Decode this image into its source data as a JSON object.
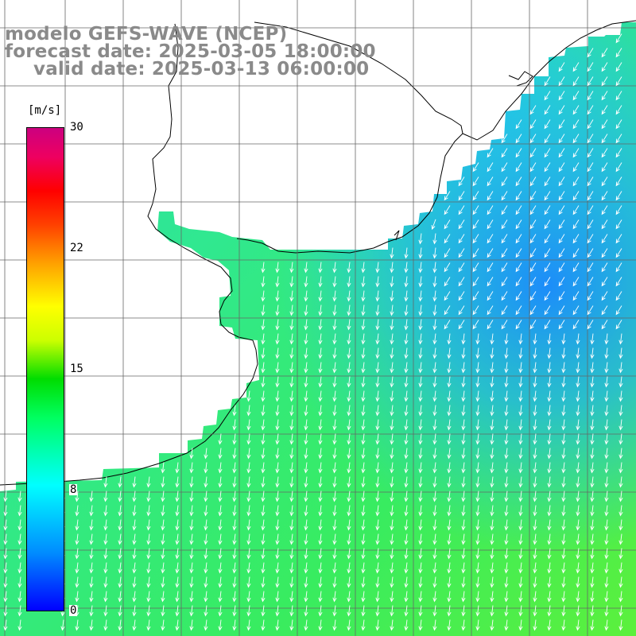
{
  "title": {
    "model": "modelo GEFS-WAVE (NCEP)",
    "forecast": "forecast date: 2025-03-05 18:00:00",
    "valid": "valid date: 2025-03-13 06:00:00"
  },
  "colorbar": {
    "unit": "[m/s]",
    "ticks": [
      "30",
      "22",
      "15",
      "8",
      "0"
    ],
    "range": [
      0,
      30
    ],
    "colors": [
      "#0000ff",
      "#008cff",
      "#00ffff",
      "#00ff60",
      "#00dd00",
      "#ccff00",
      "#ffff00",
      "#ffa000",
      "#ff0000",
      "#cc0080"
    ]
  },
  "map": {
    "variable": "wind speed with wind direction arrows",
    "land_color": "#ffffff",
    "coastline_color": "#000000",
    "grid_color": "#666666",
    "arrow_color": "#ffffff",
    "wind_direction": "from north / north-northeast (arrows point southward)",
    "speed_field": {
      "north_east_offshore": "about 6 m/s (blue)",
      "central": "about 9 m/s (cyan-green)",
      "south_west": "about 11-12 m/s (green)"
    }
  }
}
